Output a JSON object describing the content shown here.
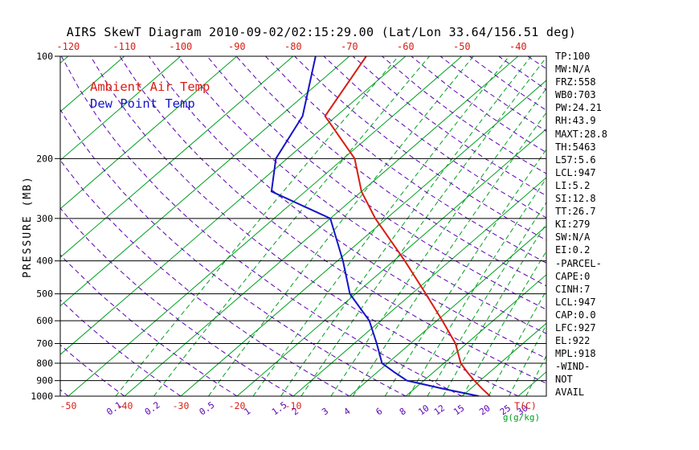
{
  "legend": [
    {
      "label": "Ambient Air Temp",
      "color": "#d81e14"
    },
    {
      "label": "Dew Point Temp",
      "color": "#1414c8"
    }
  ],
  "stats": {
    "lines": [
      "TP:100",
      "MW:N/A",
      "FRZ:558",
      "WB0:703",
      "PW:24.21",
      "RH:43.9",
      "MAXT:28.8",
      "TH:5463",
      "L57:5.6",
      "LCL:947",
      "LI:5.2",
      "SI:12.8",
      "TT:26.7",
      "KI:279",
      "SW:N/A",
      "EI:0.2",
      "-PARCEL-",
      "CAPE:0",
      "CINH:7",
      "LCL:947",
      "CAP:0.0",
      "LFC:927",
      "EL:922",
      "MPL:918",
      "-WIND-",
      "NOT",
      "AVAIL"
    ]
  },
  "chart_data": {
    "type": "line",
    "title": "AIRS SkewT Diagram 2010-09-02/02:15:29.00 (Lat/Lon 33.64/156.51 deg)",
    "xlabel": "T(C)",
    "x_unit_label": "g(g/kg)",
    "ylabel": "PRESSURE (MB)",
    "y_scale": "log",
    "y_ticks": [
      100,
      200,
      300,
      400,
      500,
      600,
      700,
      800,
      900,
      1000
    ],
    "top_axis_temp_labels_c": [
      -120,
      -110,
      -100,
      -90,
      -80,
      -70,
      -60,
      -50,
      -40
    ],
    "bottom_axis_temp_labels_c": [
      -50,
      -40,
      -30,
      -20,
      -10
    ],
    "mixing_ratio_lines_g_per_kg": [
      0.1,
      0.2,
      0.5,
      1,
      1.5,
      2,
      3,
      4,
      6,
      8,
      10,
      12,
      15,
      20,
      25,
      30
    ],
    "isotherms_c": {
      "min": -120,
      "max": 30,
      "step": 10
    },
    "dry_adiabats_c": {
      "min": -50,
      "max": 180,
      "step": 10
    },
    "series": [
      {
        "name": "Ambient Air Temp",
        "color": "#d81e14",
        "pressure_mb": [
          100,
          150,
          200,
          250,
          300,
          400,
          500,
          600,
          700,
          800,
          850,
          900,
          950,
          1000
        ],
        "temp_c": [
          -67,
          -62,
          -48,
          -40,
          -32,
          -18,
          -7.5,
          1,
          8,
          13,
          16,
          19,
          22,
          25
        ]
      },
      {
        "name": "Dew Point Temp",
        "color": "#1414c8",
        "pressure_mb": [
          100,
          150,
          200,
          250,
          300,
          400,
          500,
          600,
          700,
          800,
          850,
          900,
          950,
          1000
        ],
        "temp_c": [
          -76,
          -66,
          -62,
          -56,
          -40,
          -29,
          -21,
          -12,
          -6,
          -1,
          3,
          7,
          15,
          23
        ]
      }
    ],
    "colors": {
      "isotherm": "#00a020",
      "mixing_ratio": "#00a020",
      "dry_adiabat": "#5a00b4",
      "isobar": "#000000",
      "mixing_label": "#5a00b4",
      "temp_label": "#d81e14"
    }
  }
}
